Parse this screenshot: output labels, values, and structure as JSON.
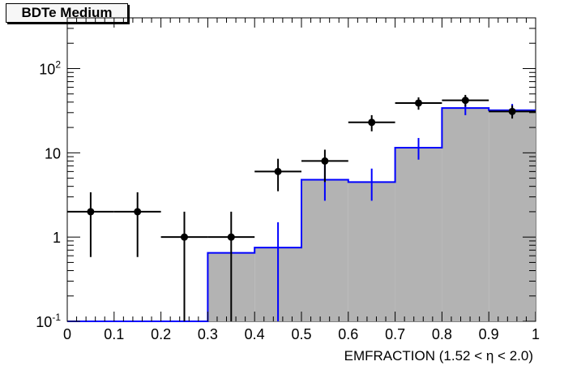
{
  "title": "BDTe Medium",
  "chart_data": {
    "type": "bar",
    "title": "BDTe Medium",
    "xlabel": "EMFRACTION (1.52 <  η < 2.0)",
    "ylabel": "",
    "xlim": [
      0,
      1
    ],
    "ylim": [
      0.1,
      400
    ],
    "log_y": true,
    "x_ticks": [
      "0",
      "0.1",
      "0.2",
      "0.3",
      "0.4",
      "0.5",
      "0.6",
      "0.7",
      "0.8",
      "0.9",
      "1"
    ],
    "y_ticks": [
      {
        "value": 0.1,
        "label": "10",
        "exp": "-1"
      },
      {
        "value": 1,
        "label": "1",
        "exp": ""
      },
      {
        "value": 10,
        "label": "10",
        "exp": ""
      },
      {
        "value": 100,
        "label": "10",
        "exp": "2"
      }
    ],
    "bin_edges": [
      0,
      0.1,
      0.2,
      0.3,
      0.4,
      0.5,
      0.6,
      0.7,
      0.8,
      0.9,
      1.0
    ],
    "series": [
      {
        "kind": "histogram",
        "fill_color": "#b3b3b3",
        "line_color": "#0000ff",
        "values": [
          0.1,
          0.1,
          0.1,
          0.65,
          0.75,
          4.8,
          4.5,
          11.5,
          34,
          32
        ],
        "err_low": [
          0,
          0,
          0,
          0,
          0.65,
          2.1,
          1.8,
          3.2,
          6,
          5
        ],
        "err_high": [
          0,
          0,
          0,
          0,
          0.75,
          2.8,
          2.0,
          3.5,
          7,
          6
        ]
      },
      {
        "kind": "points",
        "marker_color": "#000000",
        "values": [
          2,
          2,
          1,
          1,
          6,
          8,
          23,
          39,
          42,
          31
        ],
        "err_low": [
          1.42,
          1.42,
          0.95,
          0.95,
          2.5,
          3.5,
          5,
          6.5,
          6.7,
          5.5
        ],
        "err_high": [
          1.4,
          1.4,
          1.0,
          1.0,
          2.5,
          2.9,
          5,
          6.5,
          6.7,
          5.5
        ]
      }
    ]
  }
}
